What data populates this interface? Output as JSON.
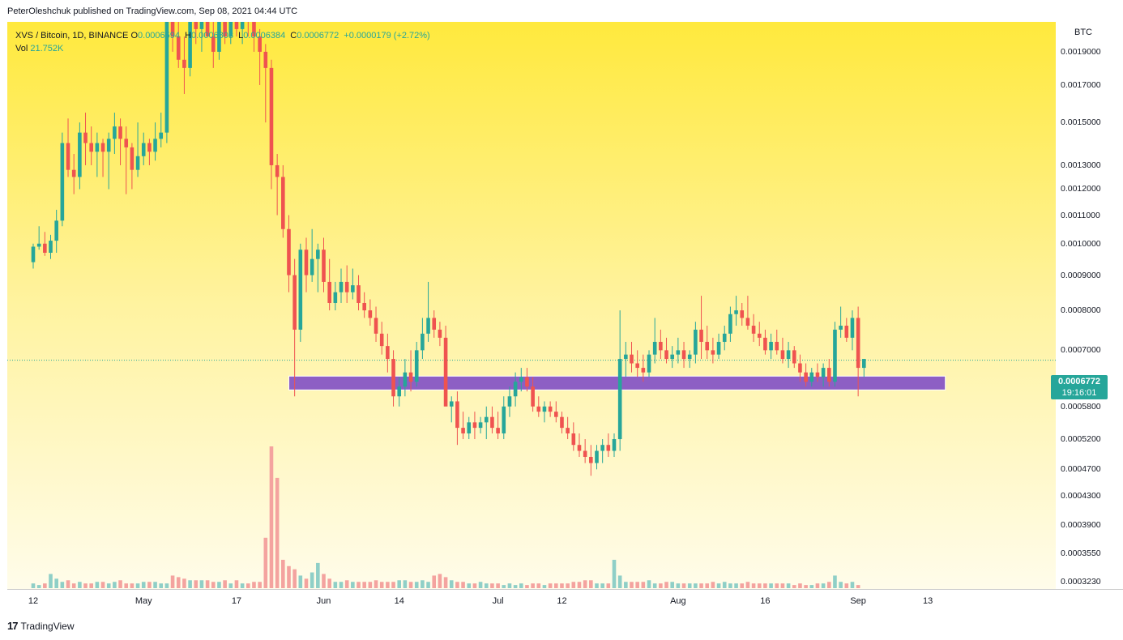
{
  "header": {
    "publisher_line": "PeterOleshchuk published on TradingView.com, Sep 08, 2021 04:44 UTC"
  },
  "legend": {
    "symbol_line": "XVS / Bitcoin, 1D, BINANCE",
    "open_key": "O",
    "open": "0.0006594",
    "high_key": "H",
    "high": "0.0006803",
    "low_key": "L",
    "low": "0.0006384",
    "close_key": "C",
    "close": "0.0006772",
    "change": "+0.0000179 (+2.72%)",
    "vol_key": "Vol",
    "vol": "21.752K"
  },
  "currency": "BTC",
  "last_price": {
    "price": "0.0006772",
    "countdown": "19:16:01"
  },
  "footer": {
    "logo_mark": "17",
    "brand": "TradingView"
  },
  "colors": {
    "up": "#26a69a",
    "down": "#ef5350",
    "up_volume": "#8fcfc7",
    "down_volume": "#f4a39f",
    "support_zone": "#8d5fc4"
  },
  "chart_data": {
    "type": "candlestick",
    "symbol": "XVS / Bitcoin",
    "interval": "1D",
    "exchange": "BINANCE",
    "scale": "log",
    "ylim": [
      0.000315,
      0.0021
    ],
    "y_ticks": [
      "0.0019000",
      "0.0017000",
      "0.0015000",
      "0.0013000",
      "0.0012000",
      "0.0011000",
      "0.0010000",
      "0.0009000",
      "0.0008000",
      "0.0007000",
      "0.0005800",
      "0.0005200",
      "0.0004700",
      "0.0004300",
      "0.0003900",
      "0.0003550",
      "0.0003230"
    ],
    "x_ticks": [
      {
        "label": "12",
        "day": 0
      },
      {
        "label": "May",
        "day": 19
      },
      {
        "label": "17",
        "day": 35
      },
      {
        "label": "Jun",
        "day": 50
      },
      {
        "label": "14",
        "day": 63
      },
      {
        "label": "Jul",
        "day": 80
      },
      {
        "label": "12",
        "day": 91
      },
      {
        "label": "Aug",
        "day": 111
      },
      {
        "label": "16",
        "day": 126
      },
      {
        "label": "Sep",
        "day": 142
      },
      {
        "label": "13",
        "day": 154
      }
    ],
    "support_zone": {
      "low": 0.000613,
      "high": 0.000642,
      "from_day": 44,
      "to_day": 157
    },
    "last_price": 0.0006772,
    "candles": [
      [
        0.00094,
        0.001,
        0.00092,
        0.00099
      ],
      [
        0.00099,
        0.00106,
        0.00098,
        0.001
      ],
      [
        0.001,
        0.00104,
        0.00096,
        0.00097
      ],
      [
        0.00097,
        0.00103,
        0.00095,
        0.00101
      ],
      [
        0.00101,
        0.00112,
        0.00097,
        0.00108
      ],
      [
        0.00108,
        0.00145,
        0.00106,
        0.0014
      ],
      [
        0.0014,
        0.00152,
        0.00125,
        0.00128
      ],
      [
        0.00128,
        0.00135,
        0.00118,
        0.00125
      ],
      [
        0.00125,
        0.0015,
        0.0012,
        0.00145
      ],
      [
        0.00145,
        0.00155,
        0.0013,
        0.0014
      ],
      [
        0.0014,
        0.00148,
        0.0013,
        0.00136
      ],
      [
        0.00136,
        0.00145,
        0.00125,
        0.0014
      ],
      [
        0.0014,
        0.00142,
        0.00125,
        0.00136
      ],
      [
        0.00136,
        0.00145,
        0.0012,
        0.00142
      ],
      [
        0.00142,
        0.00155,
        0.00135,
        0.00148
      ],
      [
        0.00148,
        0.00152,
        0.0013,
        0.00142
      ],
      [
        0.00142,
        0.00148,
        0.00118,
        0.00138
      ],
      [
        0.00138,
        0.0014,
        0.0012,
        0.00128
      ],
      [
        0.00128,
        0.0015,
        0.00125,
        0.00134
      ],
      [
        0.00134,
        0.00145,
        0.0013,
        0.0014
      ],
      [
        0.0014,
        0.00142,
        0.0013,
        0.00136
      ],
      [
        0.00136,
        0.0015,
        0.00132,
        0.00142
      ],
      [
        0.00142,
        0.00155,
        0.00138,
        0.00145
      ],
      [
        0.00145,
        0.00225,
        0.0014,
        0.0021
      ],
      [
        0.0021,
        0.0026,
        0.0019,
        0.002
      ],
      [
        0.002,
        0.00215,
        0.0018,
        0.00185
      ],
      [
        0.00185,
        0.002,
        0.00165,
        0.0018
      ],
      [
        0.0018,
        0.0023,
        0.00175,
        0.00215
      ],
      [
        0.00215,
        0.0024,
        0.00195,
        0.00205
      ],
      [
        0.00205,
        0.0022,
        0.0019,
        0.0021
      ],
      [
        0.0021,
        0.00225,
        0.002,
        0.002
      ],
      [
        0.002,
        0.0021,
        0.0018,
        0.0019
      ],
      [
        0.0019,
        0.00215,
        0.00185,
        0.0021
      ],
      [
        0.0021,
        0.00225,
        0.00195,
        0.002
      ],
      [
        0.002,
        0.0024,
        0.00195,
        0.0022
      ],
      [
        0.0022,
        0.00235,
        0.002,
        0.00205
      ],
      [
        0.00205,
        0.00225,
        0.00195,
        0.00215
      ],
      [
        0.00215,
        0.00235,
        0.002,
        0.0021
      ],
      [
        0.0021,
        0.0022,
        0.0019,
        0.002
      ],
      [
        0.002,
        0.00205,
        0.0017,
        0.0019
      ],
      [
        0.0019,
        0.00195,
        0.0015,
        0.0018
      ],
      [
        0.0018,
        0.00185,
        0.0012,
        0.0013
      ],
      [
        0.0013,
        0.00135,
        0.0011,
        0.00125
      ],
      [
        0.00125,
        0.0013,
        0.00102,
        0.00105
      ],
      [
        0.00105,
        0.0011,
        0.00085,
        0.0009
      ],
      [
        0.0009,
        0.00095,
        0.0006,
        0.00075
      ],
      [
        0.00075,
        0.001,
        0.00072,
        0.00098
      ],
      [
        0.00098,
        0.00102,
        0.00085,
        0.0009
      ],
      [
        0.0009,
        0.00105,
        0.00088,
        0.00095
      ],
      [
        0.00095,
        0.001,
        0.00085,
        0.00098
      ],
      [
        0.00098,
        0.00102,
        0.00085,
        0.00088
      ],
      [
        0.00088,
        0.00095,
        0.0008,
        0.00082
      ],
      [
        0.00082,
        0.00088,
        0.0008,
        0.00085
      ],
      [
        0.00085,
        0.00092,
        0.00082,
        0.00088
      ],
      [
        0.00088,
        0.00093,
        0.00082,
        0.00085
      ],
      [
        0.00085,
        0.00092,
        0.00083,
        0.00087
      ],
      [
        0.00087,
        0.0009,
        0.0008,
        0.00082
      ],
      [
        0.00082,
        0.00085,
        0.00078,
        0.0008
      ],
      [
        0.0008,
        0.00083,
        0.00076,
        0.00078
      ],
      [
        0.00078,
        0.00081,
        0.00072,
        0.00074
      ],
      [
        0.00074,
        0.00077,
        0.00069,
        0.00071
      ],
      [
        0.00071,
        0.00074,
        0.00065,
        0.00068
      ],
      [
        0.00068,
        0.0007,
        0.00058,
        0.0006
      ],
      [
        0.0006,
        0.00064,
        0.00058,
        0.00062
      ],
      [
        0.00062,
        0.00068,
        0.0006,
        0.00065
      ],
      [
        0.00065,
        0.0007,
        0.00061,
        0.00063
      ],
      [
        0.00063,
        0.00072,
        0.00062,
        0.0007
      ],
      [
        0.0007,
        0.00078,
        0.00068,
        0.00074
      ],
      [
        0.00074,
        0.00088,
        0.00072,
        0.00078
      ],
      [
        0.00078,
        0.0008,
        0.00073,
        0.00075
      ],
      [
        0.00075,
        0.00077,
        0.00071,
        0.00073
      ],
      [
        0.00073,
        0.00076,
        0.0006,
        0.00058
      ],
      [
        0.00058,
        0.0006,
        0.00055,
        0.00059
      ],
      [
        0.00059,
        0.00061,
        0.00051,
        0.00054
      ],
      [
        0.00054,
        0.00057,
        0.00052,
        0.00053
      ],
      [
        0.00053,
        0.00056,
        0.00052,
        0.00055
      ],
      [
        0.00055,
        0.00057,
        0.00052,
        0.00054
      ],
      [
        0.00054,
        0.00056,
        0.00053,
        0.00055
      ],
      [
        0.00055,
        0.00058,
        0.00052,
        0.00056
      ],
      [
        0.00056,
        0.00058,
        0.00053,
        0.00054
      ],
      [
        0.00054,
        0.00057,
        0.00052,
        0.00053
      ],
      [
        0.00053,
        0.0006,
        0.00052,
        0.00058
      ],
      [
        0.00058,
        0.00062,
        0.00056,
        0.0006
      ],
      [
        0.0006,
        0.00065,
        0.00058,
        0.00063
      ],
      [
        0.00063,
        0.00066,
        0.00061,
        0.00064
      ],
      [
        0.00064,
        0.00066,
        0.00061,
        0.00062
      ],
      [
        0.00062,
        0.00064,
        0.00057,
        0.00058
      ],
      [
        0.00058,
        0.0006,
        0.00056,
        0.00057
      ],
      [
        0.00057,
        0.00059,
        0.00055,
        0.00058
      ],
      [
        0.00058,
        0.00059,
        0.00056,
        0.00057
      ],
      [
        0.00057,
        0.00059,
        0.00055,
        0.00056
      ],
      [
        0.00056,
        0.00057,
        0.00053,
        0.00054
      ],
      [
        0.00054,
        0.00056,
        0.00052,
        0.00053
      ],
      [
        0.00053,
        0.00055,
        0.0005,
        0.00051
      ],
      [
        0.00051,
        0.00053,
        0.00049,
        0.0005
      ],
      [
        0.0005,
        0.00052,
        0.00048,
        0.00049
      ],
      [
        0.00049,
        0.00051,
        0.00046,
        0.00048
      ],
      [
        0.00048,
        0.00051,
        0.00047,
        0.0005
      ],
      [
        0.0005,
        0.00052,
        0.00048,
        0.00051
      ],
      [
        0.00051,
        0.00053,
        0.00049,
        0.0005
      ],
      [
        0.0005,
        0.00053,
        0.00049,
        0.00052
      ],
      [
        0.00052,
        0.0008,
        0.0005,
        0.00068
      ],
      [
        0.00068,
        0.00072,
        0.00064,
        0.00069
      ],
      [
        0.00069,
        0.00072,
        0.00065,
        0.00067
      ],
      [
        0.00067,
        0.0007,
        0.00064,
        0.00066
      ],
      [
        0.00066,
        0.00069,
        0.00063,
        0.00065
      ],
      [
        0.00065,
        0.0007,
        0.00064,
        0.00069
      ],
      [
        0.00069,
        0.00078,
        0.00067,
        0.00072
      ],
      [
        0.00072,
        0.00075,
        0.00068,
        0.0007
      ],
      [
        0.0007,
        0.00073,
        0.00067,
        0.00068
      ],
      [
        0.00068,
        0.00071,
        0.00066,
        0.00069
      ],
      [
        0.00069,
        0.00073,
        0.00067,
        0.0007
      ],
      [
        0.0007,
        0.00072,
        0.00066,
        0.00068
      ],
      [
        0.00068,
        0.0007,
        0.00066,
        0.00069
      ],
      [
        0.00069,
        0.00077,
        0.00067,
        0.00075
      ],
      [
        0.00075,
        0.00084,
        0.00068,
        0.00072
      ],
      [
        0.00072,
        0.00076,
        0.00068,
        0.0007
      ],
      [
        0.0007,
        0.00073,
        0.00067,
        0.00069
      ],
      [
        0.00069,
        0.00074,
        0.00068,
        0.00072
      ],
      [
        0.00072,
        0.00076,
        0.0007,
        0.00074
      ],
      [
        0.00074,
        0.00081,
        0.00072,
        0.00079
      ],
      [
        0.00079,
        0.00084,
        0.00076,
        0.0008
      ],
      [
        0.0008,
        0.00082,
        0.00076,
        0.00078
      ],
      [
        0.00078,
        0.00084,
        0.00075,
        0.00076
      ],
      [
        0.00076,
        0.00079,
        0.00072,
        0.00074
      ],
      [
        0.00074,
        0.00077,
        0.00071,
        0.00073
      ],
      [
        0.00073,
        0.00075,
        0.00069,
        0.0007
      ],
      [
        0.0007,
        0.00074,
        0.00068,
        0.00072
      ],
      [
        0.00072,
        0.00075,
        0.00069,
        0.0007
      ],
      [
        0.0007,
        0.00073,
        0.00067,
        0.00068
      ],
      [
        0.00068,
        0.00072,
        0.00066,
        0.0007
      ],
      [
        0.0007,
        0.00071,
        0.00066,
        0.00067
      ],
      [
        0.00067,
        0.00069,
        0.00063,
        0.00065
      ],
      [
        0.00065,
        0.00067,
        0.00062,
        0.00063
      ],
      [
        0.00063,
        0.00066,
        0.00062,
        0.00065
      ],
      [
        0.00065,
        0.00067,
        0.00063,
        0.00064
      ],
      [
        0.00064,
        0.00067,
        0.00062,
        0.00066
      ],
      [
        0.00066,
        0.00068,
        0.00062,
        0.00063
      ],
      [
        0.00063,
        0.00077,
        0.00062,
        0.00075
      ],
      [
        0.00075,
        0.00081,
        0.00073,
        0.00076
      ],
      [
        0.00076,
        0.00078,
        0.00072,
        0.00073
      ],
      [
        0.00073,
        0.0008,
        0.0007,
        0.00078
      ],
      [
        0.00078,
        0.00081,
        0.0006,
        0.00066
      ],
      [
        0.00066,
        0.00068,
        0.00064,
        0.00068
      ]
    ],
    "volume": [
      3,
      2,
      3,
      9,
      6,
      4,
      5,
      3,
      4,
      3,
      3,
      4,
      4,
      3,
      4,
      5,
      3,
      3,
      3,
      4,
      4,
      4,
      3,
      3,
      8,
      7,
      6,
      5,
      5,
      5,
      5,
      4,
      4,
      5,
      3,
      5,
      3,
      3,
      4,
      4,
      32,
      90,
      70,
      18,
      14,
      12,
      8,
      6,
      10,
      16,
      9,
      6,
      4,
      4,
      5,
      4,
      4,
      4,
      4,
      5,
      4,
      4,
      4,
      5,
      5,
      4,
      4,
      5,
      4,
      8,
      9,
      7,
      5,
      4,
      4,
      3,
      3,
      4,
      3,
      3,
      3,
      2,
      3,
      2,
      3,
      2,
      3,
      3,
      2,
      3,
      3,
      3,
      3,
      4,
      4,
      5,
      5,
      3,
      3,
      3,
      18,
      8,
      4,
      4,
      4,
      4,
      5,
      3,
      3,
      4,
      4,
      3,
      3,
      3,
      3,
      3,
      3,
      4,
      3,
      4,
      3,
      3,
      3,
      4,
      3,
      3,
      3,
      3,
      3,
      3,
      3,
      2,
      3,
      2,
      2,
      3,
      3,
      4,
      8,
      4,
      3,
      4,
      2
    ]
  }
}
